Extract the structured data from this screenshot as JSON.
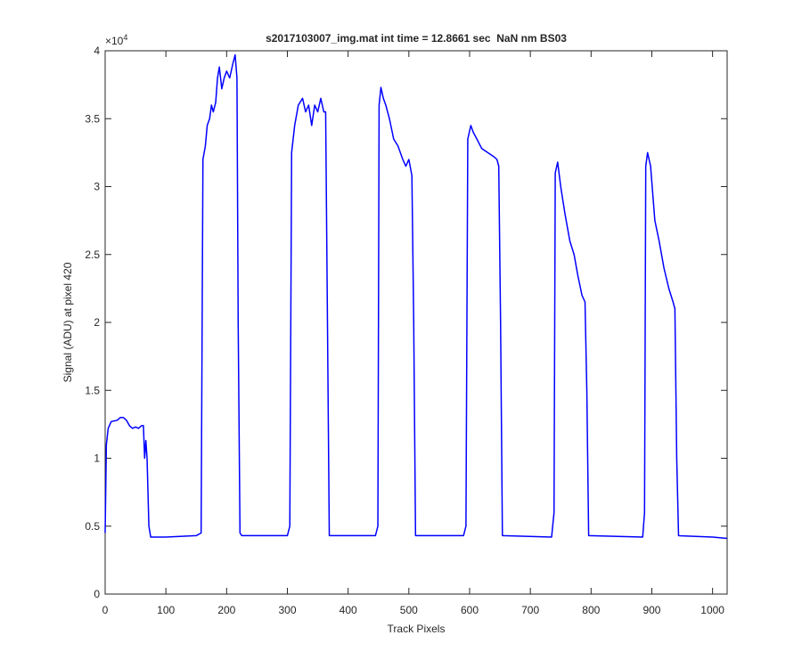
{
  "chart_data": {
    "type": "line",
    "title": "s2017103007_img.mat int time = 12.8661 sec  NaN nm BS03",
    "x_label": "Track Pixels",
    "y_label": "Signal (ADU) at pixel 420",
    "y_multiplier": {
      "base": "×10",
      "exponent": "4"
    },
    "color": "#0000ff",
    "xlim": [
      0,
      1024
    ],
    "ylim": [
      0,
      4
    ],
    "xticks": [
      0,
      100,
      200,
      300,
      400,
      500,
      600,
      700,
      800,
      900,
      1000
    ],
    "yticks": [
      0,
      0.5,
      1,
      1.5,
      2,
      2.5,
      3,
      3.5,
      4
    ],
    "x": [
      0,
      2,
      5,
      10,
      20,
      25,
      30,
      35,
      40,
      45,
      50,
      55,
      60,
      63,
      65,
      67,
      69,
      72,
      75,
      100,
      150,
      158,
      161,
      165,
      168,
      172,
      175,
      178,
      182,
      185,
      188,
      192,
      196,
      200,
      205,
      210,
      214,
      217,
      219,
      222,
      225,
      300,
      304,
      307,
      312,
      318,
      325,
      330,
      335,
      340,
      345,
      350,
      355,
      360,
      363,
      366,
      369,
      445,
      449,
      451,
      454,
      458,
      462,
      468,
      475,
      482,
      490,
      495,
      500,
      505,
      508,
      511,
      590,
      594,
      597,
      602,
      606,
      612,
      620,
      630,
      640,
      645,
      648,
      651,
      654,
      735,
      739,
      741,
      745,
      750,
      757,
      765,
      772,
      778,
      785,
      790,
      793,
      796,
      885,
      888,
      890,
      893,
      898,
      905,
      912,
      920,
      928,
      935,
      938,
      941,
      944,
      1000,
      1024
    ],
    "values": [
      0.45,
      1.1,
      1.22,
      1.27,
      1.28,
      1.3,
      1.3,
      1.28,
      1.24,
      1.22,
      1.23,
      1.22,
      1.24,
      1.24,
      1.0,
      1.13,
      1.0,
      0.5,
      0.42,
      0.42,
      0.43,
      0.45,
      3.2,
      3.3,
      3.45,
      3.5,
      3.6,
      3.55,
      3.62,
      3.8,
      3.88,
      3.72,
      3.8,
      3.85,
      3.8,
      3.9,
      3.97,
      3.8,
      2.0,
      0.45,
      0.43,
      0.43,
      0.5,
      3.25,
      3.45,
      3.6,
      3.65,
      3.55,
      3.6,
      3.45,
      3.6,
      3.55,
      3.65,
      3.55,
      3.55,
      2.0,
      0.43,
      0.43,
      0.5,
      3.6,
      3.73,
      3.65,
      3.6,
      3.5,
      3.35,
      3.3,
      3.2,
      3.15,
      3.2,
      3.08,
      2.0,
      0.43,
      0.43,
      0.5,
      3.35,
      3.45,
      3.4,
      3.35,
      3.28,
      3.25,
      3.22,
      3.2,
      3.15,
      2.0,
      0.43,
      0.42,
      0.6,
      3.1,
      3.18,
      3.0,
      2.8,
      2.6,
      2.5,
      2.35,
      2.2,
      2.15,
      1.5,
      0.43,
      0.42,
      0.6,
      3.15,
      3.25,
      3.15,
      2.75,
      2.6,
      2.4,
      2.25,
      2.15,
      2.1,
      1.0,
      0.43,
      0.42,
      0.41
    ]
  }
}
